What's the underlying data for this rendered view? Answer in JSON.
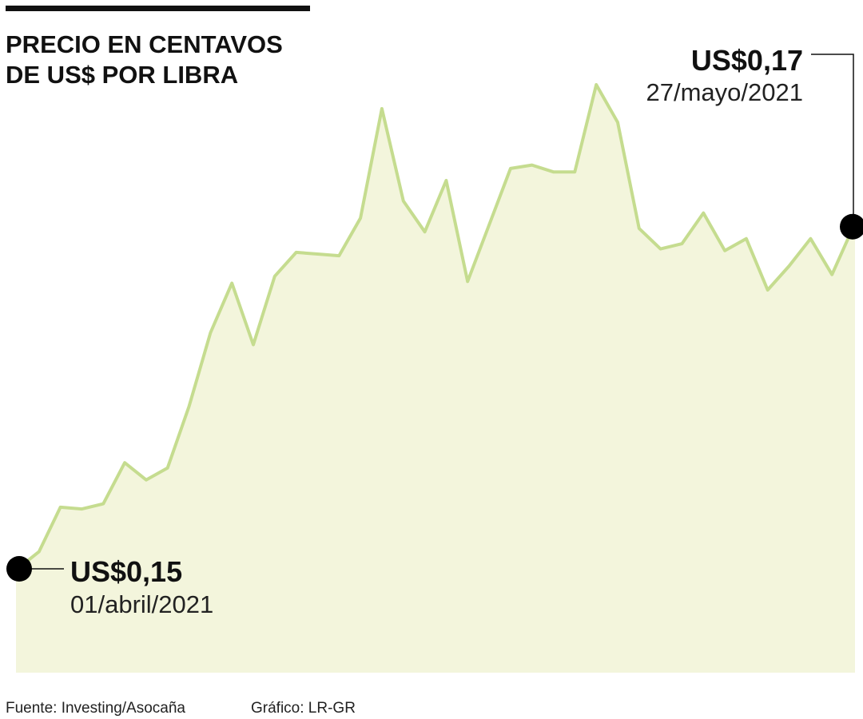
{
  "chart_data": {
    "type": "area",
    "title": [
      "PRECIO EN CENTAVOS",
      "DE US$ POR LIBRA"
    ],
    "categories": [
      "01/abril/2021",
      null,
      null,
      null,
      null,
      null,
      null,
      null,
      null,
      null,
      null,
      null,
      null,
      null,
      null,
      null,
      null,
      null,
      null,
      null,
      null,
      null,
      null,
      null,
      null,
      null,
      null,
      null,
      null,
      null,
      null,
      null,
      null,
      null,
      null,
      null,
      null,
      null,
      null,
      "27/mayo/2021"
    ],
    "values": [
      0.15,
      0.151,
      0.1536,
      0.1535,
      0.1538,
      0.1562,
      0.1552,
      0.1559,
      0.1595,
      0.1638,
      0.1667,
      0.1631,
      0.1671,
      0.1685,
      0.1684,
      0.1683,
      0.1705,
      0.1769,
      0.1715,
      0.1697,
      0.1727,
      0.1668,
      0.1701,
      0.1734,
      0.1736,
      0.1732,
      0.1732,
      0.1783,
      0.1761,
      0.1699,
      0.1687,
      0.169,
      0.1708,
      0.1686,
      0.1693,
      0.1663,
      0.1677,
      0.1693,
      0.1672,
      0.17
    ],
    "value_labels": [
      "US$0,15",
      null,
      null,
      null,
      null,
      null,
      null,
      null,
      null,
      null,
      null,
      null,
      null,
      null,
      null,
      null,
      null,
      null,
      null,
      null,
      null,
      null,
      null,
      null,
      null,
      null,
      null,
      null,
      null,
      null,
      null,
      null,
      null,
      null,
      null,
      null,
      null,
      null,
      null,
      "US$0,17"
    ],
    "color": "#c5dc8f",
    "fill": "#f3f5dc",
    "source": "Fuente: Investing/Asocaña",
    "credit": "Gráfico: LR-GR"
  }
}
